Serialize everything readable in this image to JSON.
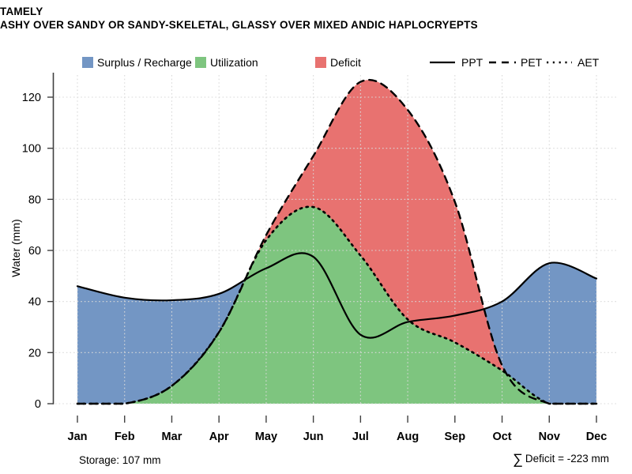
{
  "title": "TAMELY",
  "subtitle": "ASHY OVER SANDY OR SANDY-SKELETAL, GLASSY OVER MIXED ANDIC HAPLOCRYEPTS",
  "legend": {
    "area_items": [
      {
        "label": "Surplus / Recharge",
        "color": "#7396c4"
      },
      {
        "label": "Utilization",
        "color": "#7ec57f"
      },
      {
        "label": "Deficit",
        "color": "#e87270"
      }
    ],
    "line_items": [
      {
        "label": "PPT",
        "style": "solid"
      },
      {
        "label": "PET",
        "style": "dashed"
      },
      {
        "label": "AET",
        "style": "dotted"
      }
    ]
  },
  "chart_data": {
    "type": "area",
    "subtype": "monthly water balance with smoothed line series",
    "categories": [
      "Jan",
      "Feb",
      "Mar",
      "Apr",
      "May",
      "Jun",
      "Jul",
      "Aug",
      "Sep",
      "Oct",
      "Nov",
      "Dec"
    ],
    "series": [
      {
        "name": "PPT",
        "style": "solid",
        "color": "#000000",
        "values": [
          46,
          41.5,
          40.5,
          43,
          53,
          57.5,
          27,
          32,
          34.5,
          40,
          55,
          49
        ]
      },
      {
        "name": "PET",
        "style": "dashed",
        "color": "#000000",
        "values": [
          0,
          0,
          7,
          28,
          66,
          97,
          126,
          115,
          79,
          15,
          0,
          0
        ]
      },
      {
        "name": "AET",
        "style": "dotted",
        "color": "#000000",
        "values": [
          0,
          0,
          7,
          28,
          64,
          77,
          58,
          33,
          24,
          13,
          0,
          0
        ]
      }
    ],
    "areas": [
      {
        "name": "Surplus / Recharge",
        "under": "PPT",
        "color": "#7396c4"
      },
      {
        "name": "Deficit",
        "under": "PET",
        "color": "#e87270"
      },
      {
        "name": "Utilization",
        "under": "AET",
        "color": "#7ec57f"
      }
    ],
    "title": "TAMELY",
    "xlabel": "",
    "ylabel": "Water (mm)",
    "yticks": [
      0,
      20,
      40,
      60,
      80,
      100,
      120
    ],
    "ylim": [
      0,
      130
    ],
    "grid": "light dotted horizontal and vertical gridlines drawn over fills",
    "legend_position": "top",
    "annotations": {
      "storage_mm": 107,
      "sum_deficit_mm": -223
    }
  },
  "footer": {
    "storage": "Storage: 107 mm",
    "sum_symbol": "∑",
    "deficit": "Deficit = -223 mm"
  }
}
